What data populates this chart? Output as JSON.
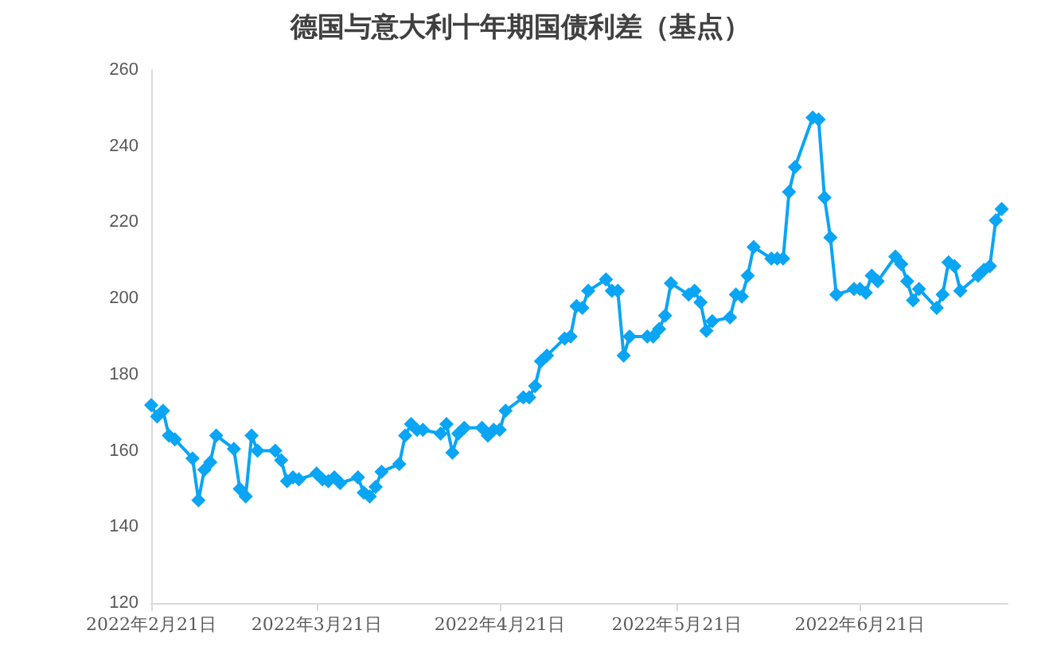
{
  "chart_data": {
    "type": "line",
    "title": "德国与意大利十年期国债利差（基点）",
    "marker": "diamond",
    "x": [
      "2022-02-21",
      "2022-02-22",
      "2022-02-23",
      "2022-02-24",
      "2022-02-25",
      "2022-02-28",
      "2022-03-01",
      "2022-03-02",
      "2022-03-03",
      "2022-03-04",
      "2022-03-07",
      "2022-03-08",
      "2022-03-09",
      "2022-03-10",
      "2022-03-11",
      "2022-03-14",
      "2022-03-15",
      "2022-03-16",
      "2022-03-17",
      "2022-03-18",
      "2022-03-21",
      "2022-03-22",
      "2022-03-23",
      "2022-03-24",
      "2022-03-25",
      "2022-03-28",
      "2022-03-29",
      "2022-03-30",
      "2022-03-31",
      "2022-04-01",
      "2022-04-04",
      "2022-04-05",
      "2022-04-06",
      "2022-04-07",
      "2022-04-08",
      "2022-04-11",
      "2022-04-12",
      "2022-04-13",
      "2022-04-14",
      "2022-04-15",
      "2022-04-18",
      "2022-04-19",
      "2022-04-20",
      "2022-04-21",
      "2022-04-22",
      "2022-04-25",
      "2022-04-26",
      "2022-04-27",
      "2022-04-28",
      "2022-04-29",
      "2022-05-02",
      "2022-05-03",
      "2022-05-04",
      "2022-05-05",
      "2022-05-06",
      "2022-05-09",
      "2022-05-10",
      "2022-05-11",
      "2022-05-12",
      "2022-05-13",
      "2022-05-16",
      "2022-05-17",
      "2022-05-18",
      "2022-05-19",
      "2022-05-20",
      "2022-05-23",
      "2022-05-24",
      "2022-05-25",
      "2022-05-26",
      "2022-05-27",
      "2022-05-30",
      "2022-05-31",
      "2022-06-01",
      "2022-06-02",
      "2022-06-03",
      "2022-06-06",
      "2022-06-07",
      "2022-06-08",
      "2022-06-09",
      "2022-06-10",
      "2022-06-13",
      "2022-06-14",
      "2022-06-15",
      "2022-06-16",
      "2022-06-17",
      "2022-06-20",
      "2022-06-21",
      "2022-06-22",
      "2022-06-23",
      "2022-06-24",
      "2022-06-27",
      "2022-06-28",
      "2022-06-29",
      "2022-06-30",
      "2022-07-01",
      "2022-07-04",
      "2022-07-05",
      "2022-07-06",
      "2022-07-07",
      "2022-07-08",
      "2022-07-11",
      "2022-07-12",
      "2022-07-13",
      "2022-07-14",
      "2022-07-15"
    ],
    "series": [
      {
        "color": "#0aa5f5",
        "values": [
          172,
          169,
          170.5,
          164,
          163,
          158,
          147,
          155,
          157,
          164,
          160.5,
          150,
          148,
          164,
          160,
          160,
          157.5,
          152,
          153,
          152.5,
          154,
          152.5,
          152,
          153,
          151.5,
          153,
          149,
          148,
          150.5,
          154.5,
          156.5,
          164,
          167,
          165.5,
          165.5,
          164.5,
          167,
          159.5,
          164.5,
          166,
          166,
          164,
          165.5,
          165.5,
          170.5,
          174,
          174,
          177,
          183.5,
          185,
          189.5,
          190,
          198,
          197.5,
          202,
          205,
          202,
          202,
          185,
          190,
          190,
          190,
          192,
          195.5,
          204,
          201,
          202,
          199,
          191.5,
          194,
          195,
          201,
          200.5,
          206,
          213.5,
          210.5,
          210.5,
          210.5,
          228,
          234.5,
          247.5,
          247,
          226.5,
          216,
          201,
          202.5,
          202.5,
          201.5,
          206,
          204.5,
          211,
          209,
          204.5,
          199.5,
          202.5,
          197.5,
          201,
          209.5,
          208.5,
          202,
          206,
          207.5,
          208.5,
          220.5,
          223.5
        ]
      }
    ],
    "xlim": [
      "2022-02-21",
      "2022-07-16"
    ],
    "xticks": [
      {
        "value": "2022-02-21",
        "label": "2022年2月21日"
      },
      {
        "value": "2022-03-21",
        "label": "2022年3月21日"
      },
      {
        "value": "2022-04-21",
        "label": "2022年4月21日"
      },
      {
        "value": "2022-05-21",
        "label": "2022年5月21日"
      },
      {
        "value": "2022-06-21",
        "label": "2022年6月21日"
      }
    ],
    "ylim": [
      120,
      260
    ],
    "yticks": [
      120,
      140,
      160,
      180,
      200,
      220,
      240,
      260
    ]
  }
}
